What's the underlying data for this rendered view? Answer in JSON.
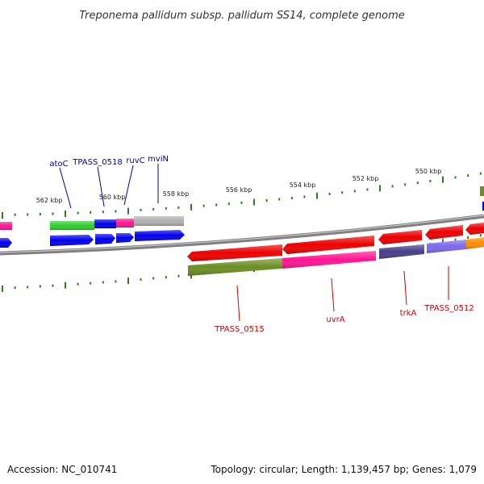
{
  "header": {
    "title": "Treponema pallidum subsp. pallidum SS14, complete genome"
  },
  "footer": {
    "accession": "Accession: NC_010741",
    "summary": "Topology: circular; Length: 1,139,457 bp; Genes: 1,079"
  },
  "ruler": {
    "tick_labels": [
      "562 kbp",
      "560 kbp",
      "558 kbp",
      "556 kbp",
      "554 kbp",
      "552 kbp",
      "550 kbp"
    ]
  },
  "top_labels": [
    "atoC",
    "TPASS_0518",
    "ruvC",
    "mviN"
  ],
  "bottom_labels": [
    "TPASS_0515",
    "uvrA",
    "trkA",
    "TPASS_0512"
  ],
  "colors": {
    "forward_label": "#0000aa",
    "reverse_label": "#cc0000",
    "backbone": "#808080",
    "tick": "#2e7d1e",
    "blue_cds": "#0000ee",
    "red_cds": "#ee0000",
    "green_feature": "#33cc33",
    "olive_feature": "#6b8e23",
    "pink_feature": "#ff1493",
    "gray_feature": "#b0b0b0",
    "navy_feature": "#483d8b",
    "lavender_feature": "#7b68ee",
    "orange_feature": "#ff8c00"
  }
}
